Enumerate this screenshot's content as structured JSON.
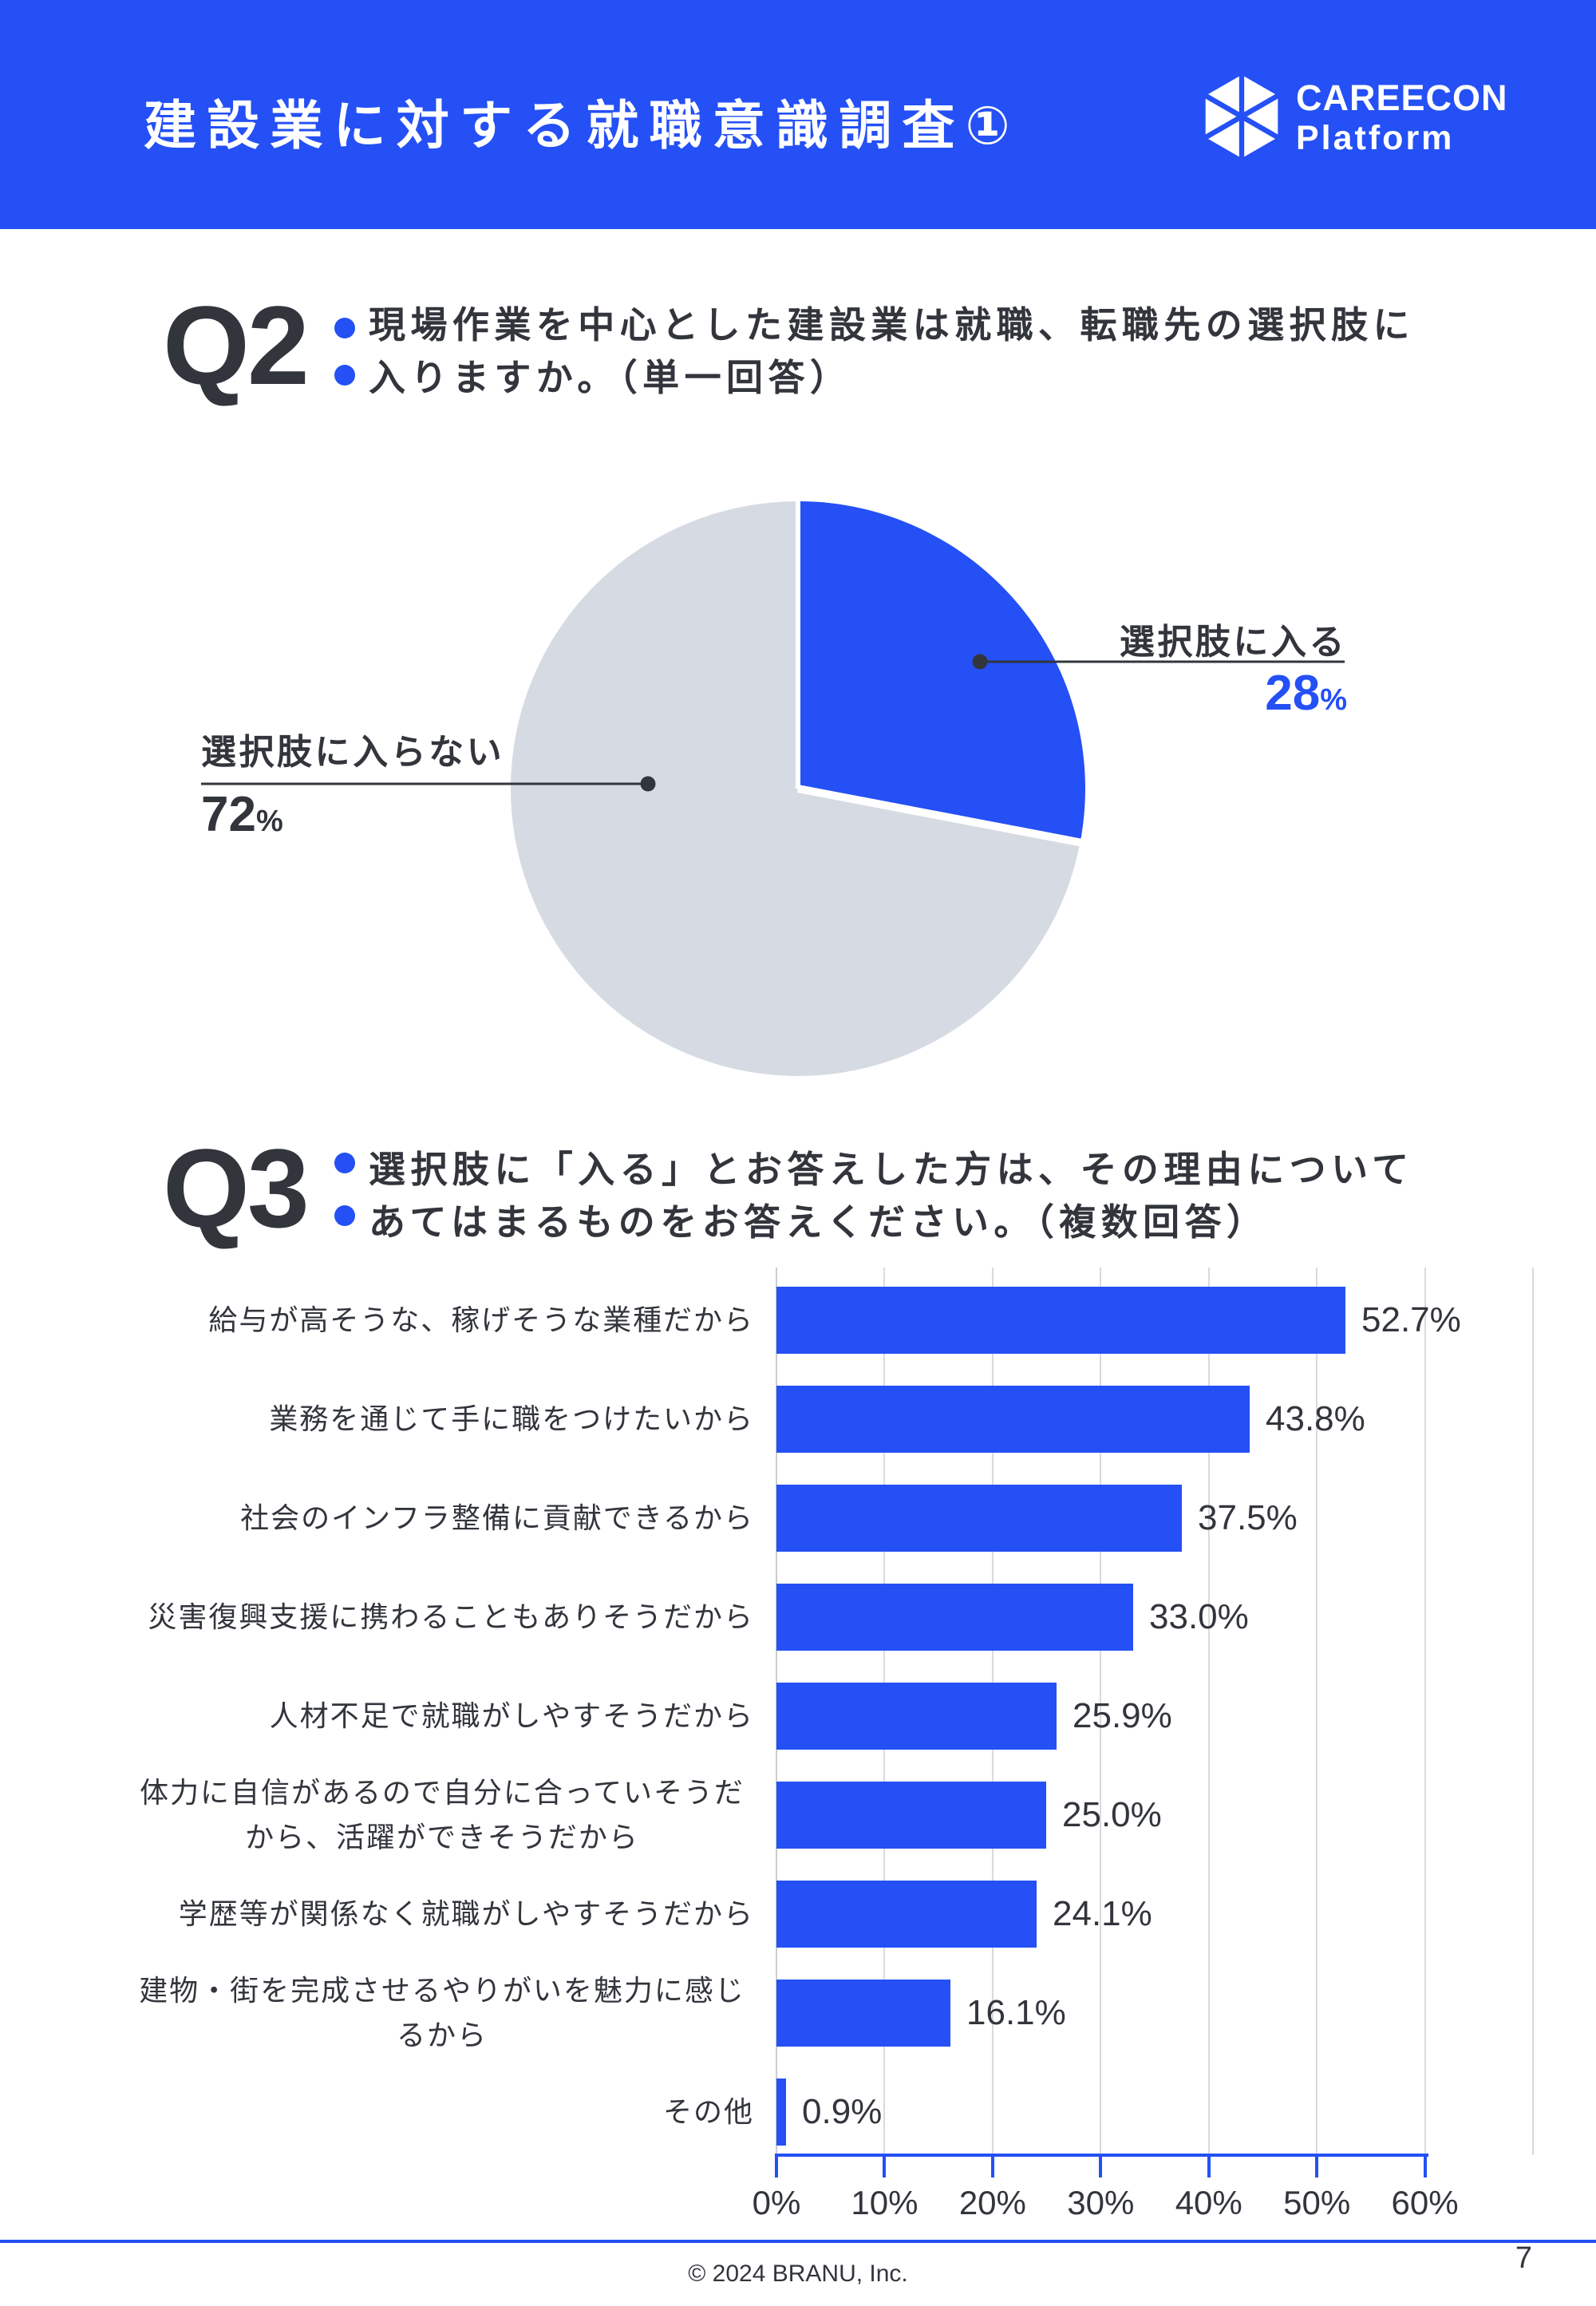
{
  "header": {
    "title": "建設業に対する就職意識調査①",
    "brand_name": "CAREECON",
    "brand_sub": "Platform"
  },
  "q2": {
    "marker": "Q2",
    "line1": "現場作業を中心とした建設業は就職、転職先の選択肢に",
    "line2": "入りますか。（単一回答）",
    "pie_labels": {
      "enter": {
        "label": "選択肢に入る",
        "value": "28",
        "unit": "%"
      },
      "not_enter": {
        "label": "選択肢に入らない",
        "value": "72",
        "unit": "%"
      }
    }
  },
  "q3": {
    "marker": "Q3",
    "line1": "選択肢に「入る」とお答えした方は、その理由について",
    "line2": "あてはまるものをお答えください。（複数回答）"
  },
  "chart_data": [
    {
      "type": "pie",
      "question": "Q2",
      "labels": [
        "選択肢に入る",
        "選択肢に入らない"
      ],
      "values": [
        28,
        72
      ],
      "unit": "%",
      "colors": [
        "#2450F5",
        "#D6DBE3"
      ],
      "start_angle": "top",
      "direction": "clockwise",
      "legend_position": "callout-labels"
    },
    {
      "type": "bar",
      "question": "Q3",
      "orientation": "horizontal",
      "categories": [
        "給与が高そうな、稼げそうな業種だから",
        "業務を通じて手に職をつけたいから",
        "社会のインフラ整備に貢献できるから",
        "災害復興支援に携わることもありそうだから",
        "人材不足で就職がしやすそうだから",
        "体力に自信があるので自分に合っていそうだから、活躍ができそうだから",
        "学歴等が関係なく就職がしやすそうだから",
        "建物・街を完成させるやりがいを魅力に感じるから",
        "その他"
      ],
      "category_lines": [
        [
          "給与が高そうな、稼げそうな業種だから"
        ],
        [
          "業務を通じて手に職をつけたいから"
        ],
        [
          "社会のインフラ整備に貢献できるから"
        ],
        [
          "災害復興支援に携わることもありそうだから"
        ],
        [
          "人材不足で就職がしやすそうだから"
        ],
        [
          "体力に自信があるので自分に合っていそうだ",
          "から、活躍ができそうだから"
        ],
        [
          "学歴等が関係なく就職がしやすそうだから"
        ],
        [
          "建物・街を完成させるやりがいを魅力に感じ",
          "るから"
        ],
        [
          "その他"
        ]
      ],
      "values": [
        52.7,
        43.8,
        37.5,
        33.0,
        25.9,
        25.0,
        24.1,
        16.1,
        0.9
      ],
      "value_labels": [
        "52.7%",
        "43.8%",
        "37.5%",
        "33.0%",
        "25.9%",
        "25.0%",
        "24.1%",
        "16.1%",
        "0.9%"
      ],
      "x_ticks": [
        "0%",
        "10%",
        "20%",
        "30%",
        "40%",
        "50%",
        "60%"
      ],
      "xlim": [
        0,
        60
      ],
      "grid": true,
      "bar_color": "#2450F5"
    }
  ],
  "footer": {
    "copyright": "© 2024 BRANU, Inc.",
    "page": "7"
  }
}
